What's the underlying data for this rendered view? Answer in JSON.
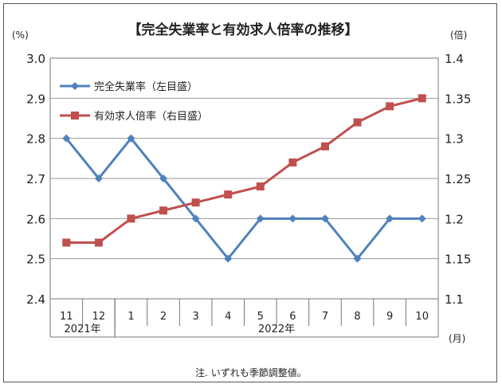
{
  "chart_data": {
    "type": "line",
    "title": "【完全失業率と有効求人倍率の推移】",
    "left_unit": "(%)",
    "right_unit": "(倍)",
    "x_unit": "(月)",
    "categories": [
      "11",
      "12",
      "1",
      "2",
      "3",
      "4",
      "5",
      "6",
      "7",
      "8",
      "9",
      "10"
    ],
    "year_labels": [
      {
        "label": "2021年",
        "from": 0,
        "to": 1
      },
      {
        "label": "2022年",
        "from": 2,
        "to": 11
      }
    ],
    "ylim_left": [
      2.4,
      3.0
    ],
    "ylim_right": [
      1.1,
      1.4
    ],
    "yticks_left": [
      "2.4",
      "2.5",
      "2.6",
      "2.7",
      "2.8",
      "2.9",
      "3.0"
    ],
    "yticks_right": [
      "1.1",
      "1.15",
      "1.2",
      "1.25",
      "1.3",
      "1.35",
      "1.4"
    ],
    "grid": true,
    "legend_position": "top-left",
    "series": [
      {
        "name": "完全失業率（左目盛）",
        "axis": "left",
        "color": "#4f81bd",
        "marker": "diamond",
        "values": [
          2.8,
          2.7,
          2.8,
          2.7,
          2.6,
          2.5,
          2.6,
          2.6,
          2.6,
          2.5,
          2.6,
          2.6
        ]
      },
      {
        "name": "有効求人倍率（右目盛）",
        "axis": "right",
        "color": "#c0504d",
        "marker": "square",
        "values": [
          1.17,
          1.17,
          1.2,
          1.21,
          1.22,
          1.23,
          1.24,
          1.27,
          1.29,
          1.32,
          1.34,
          1.35
        ]
      }
    ],
    "note": "注. いずれも季節調整値。"
  }
}
